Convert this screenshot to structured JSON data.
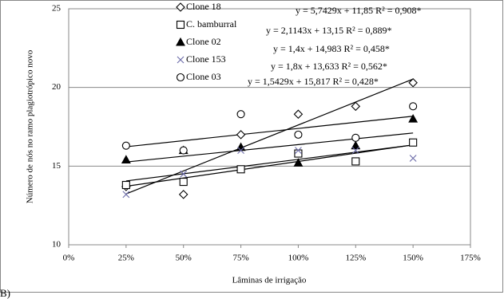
{
  "chart_data": {
    "type": "scatter",
    "x": [
      25,
      50,
      75,
      100,
      125,
      150
    ],
    "series": [
      {
        "name": "Clone 18",
        "color": "#000000",
        "marker": "diamond",
        "values": [
          13.7,
          13.2,
          17.0,
          18.3,
          18.8,
          20.3
        ]
      },
      {
        "name": "C. bamburral",
        "color": "#000000",
        "marker": "square",
        "values": [
          13.8,
          14.0,
          14.8,
          15.8,
          15.3,
          16.5
        ]
      },
      {
        "name": "Clone 02",
        "color": "#000000",
        "marker": "triangle",
        "values": [
          15.4,
          16.0,
          16.2,
          15.2,
          16.3,
          18.0
        ]
      },
      {
        "name": "Clone 153",
        "color": "#6a6aa8",
        "marker": "cross",
        "values": [
          13.2,
          14.5,
          16.0,
          16.0,
          16.0,
          15.5
        ]
      },
      {
        "name": "Clone 03",
        "color": "#000000",
        "marker": "circle",
        "values": [
          16.3,
          16.0,
          18.3,
          17.0,
          16.8,
          18.8
        ]
      }
    ],
    "trendline": "linear",
    "annotations": [
      "y = 5,7429x + 11,85 R² = 0,908*",
      "y = 2,1143x + 13,15 R² = 0,889*",
      "y = 1,4x + 14,983 R² = 0,458*",
      "y = 1,8x + 13,633 R² = 0,562*",
      "y = 1,5429x + 15,817 R² = 0,428*"
    ],
    "xlabel": "Lâminas de irrigação",
    "ylabel": "Número de nós no ramo plagiotrópico novo",
    "xlim": [
      0,
      175
    ],
    "xticks": [
      {
        "value": 0,
        "label": "0%"
      },
      {
        "value": 25,
        "label": "25%"
      },
      {
        "value": 50,
        "label": "50%"
      },
      {
        "value": 75,
        "label": "75%"
      },
      {
        "value": 100,
        "label": "100%"
      },
      {
        "value": 125,
        "label": "125%"
      },
      {
        "value": 150,
        "label": "150%"
      },
      {
        "value": 175,
        "label": "175%"
      }
    ],
    "ylim": [
      10,
      25
    ],
    "yticks": [
      10,
      15,
      20,
      25
    ],
    "grid": true,
    "legend": "top-left",
    "panel_label": "B)"
  }
}
